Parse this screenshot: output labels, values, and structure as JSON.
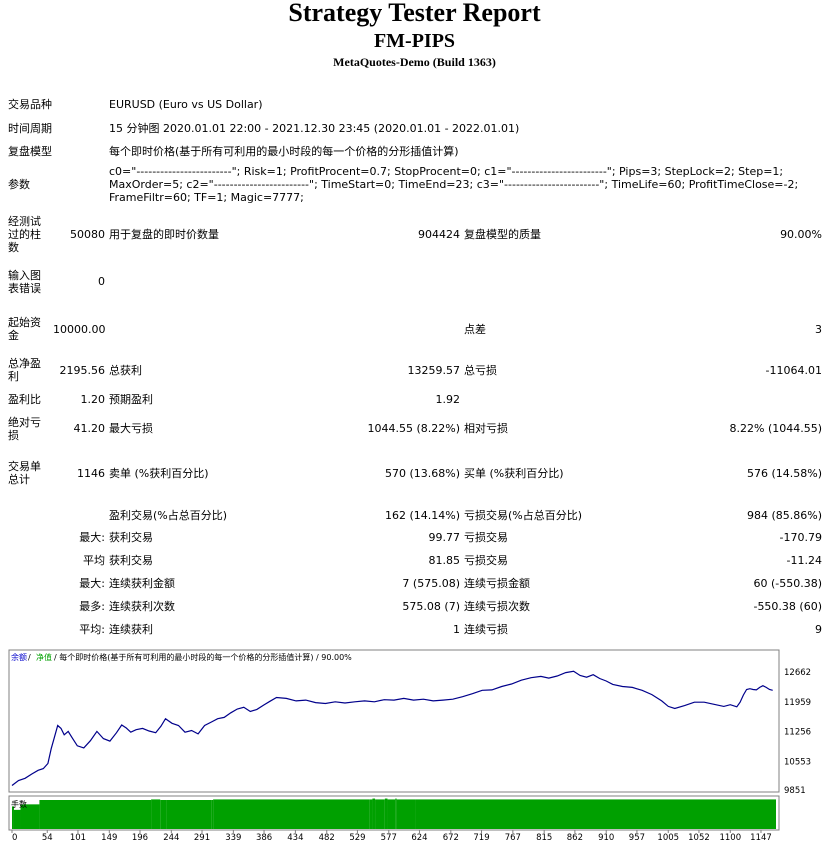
{
  "header": {
    "title": "Strategy Tester Report",
    "expert": "FM-PIPS",
    "server": "MetaQuotes-Demo (Build 1363)"
  },
  "info": {
    "symbol_label": "交易品种",
    "symbol_value": "EURUSD (Euro vs US Dollar)",
    "period_label": "时间周期",
    "period_value": "15 分钟图 2020.01.01 22:00 - 2021.12.30 23:45 (2020.01.01 - 2022.01.01)",
    "model_label": "复盘模型",
    "model_value": "每个即时价格(基于所有可利用的最小时段的每一个价格的分形插值计算)",
    "params_label": "参数",
    "params_value": "c0=\"------------------------\"; Risk=1; ProfitProcent=0.7; StopProcent=0; c1=\"------------------------\"; Pips=3; StepLock=2; Step=1; MaxOrder=5; c2=\"------------------------\"; TimeStart=0; TimeEnd=23; c3=\"------------------------\"; TimeLife=60; ProfitTimeClose=-2; FrameFiltr=60; TF=1; Magic=7777;"
  },
  "stats": {
    "bars_label": "经测试过的柱数",
    "bars": "50080",
    "ticks_label": "用于复盘的即时价数量",
    "ticks": "904424",
    "quality_label": "复盘模型的质量",
    "quality": "90.00%",
    "errors_label": "输入图表错误",
    "errors": "0",
    "deposit_label": "起始资金",
    "deposit": "10000.00",
    "spread_label": "点差",
    "spread": "3",
    "net_label": "总净盈利",
    "net": "2195.56",
    "gross_profit_label": "总获利",
    "gross_profit": "13259.57",
    "gross_loss_label": "总亏损",
    "gross_loss": "-11064.01",
    "pf_label": "盈利比",
    "pf": "1.20",
    "expected_label": "预期盈利",
    "expected": "1.92",
    "abs_dd_label": "绝对亏损",
    "abs_dd": "41.20",
    "max_dd_label": "最大亏损",
    "max_dd": "1044.55 (8.22%)",
    "rel_dd_label": "相对亏损",
    "rel_dd": "8.22% (1044.55)",
    "trades_label": "交易单总计",
    "trades": "1146",
    "short_label": "卖单 (%获利百分比)",
    "short": "570 (13.68%)",
    "long_label": "买单 (%获利百分比)",
    "long": "576 (14.58%)",
    "win_label": "盈利交易(%占总百分比)",
    "win": "162 (14.14%)",
    "loss_label": "亏损交易(%占总百分比)",
    "loss": "984 (85.86%)",
    "largest_label": "最大:",
    "largest_win_label": "获利交易",
    "largest_win": "99.77",
    "largest_loss_label": "亏损交易",
    "largest_loss": "-170.79",
    "average_label": "平均",
    "average_win_label": "获利交易",
    "average_win": "81.85",
    "average_loss_label": "亏损交易",
    "average_loss": "-11.24",
    "max_label": "最大:",
    "max_cw_label": "连续获利金额",
    "max_cw": "7 (575.08)",
    "max_cl_label": "连续亏损金额",
    "max_cl": "60 (-550.38)",
    "most_label": "最多:",
    "most_cw_label": "连续获利次数",
    "most_cw": "575.08 (7)",
    "most_cl_label": "连续亏损次数",
    "most_cl": "-550.38 (60)",
    "avg_label": "平均:",
    "avg_cw_label": "连续获利",
    "avg_cw": "1",
    "avg_cl_label": "连续亏损",
    "avg_cl": "9"
  },
  "chart_data": {
    "type": "line",
    "legend": {
      "balance": "余额",
      "equity": "净值",
      "text": " / 每个即时价格(基于所有可利用的最小时段的每一个价格的分形插值计算) / 90.00%"
    },
    "lots_label": "手数",
    "ylim": [
      9851,
      12900
    ],
    "y_ticks": [
      12662,
      11959,
      11256,
      10553,
      9851
    ],
    "xlim": [
      0,
      1170
    ],
    "x_ticks": [
      0,
      54,
      101,
      149,
      196,
      244,
      291,
      339,
      386,
      434,
      482,
      529,
      577,
      624,
      672,
      719,
      767,
      815,
      862,
      910,
      957,
      1005,
      1052,
      1100,
      1147
    ],
    "series": [
      {
        "color": "#00008b",
        "x": [
          0,
          10,
          20,
          30,
          40,
          48,
          55,
          60,
          65,
          70,
          75,
          80,
          86,
          92,
          100,
          110,
          120,
          130,
          140,
          150,
          160,
          168,
          175,
          182,
          190,
          200,
          210,
          220,
          228,
          235,
          245,
          255,
          265,
          275,
          285,
          295,
          305,
          315,
          325,
          335,
          345,
          355,
          365,
          375,
          385,
          395,
          405,
          420,
          435,
          450,
          465,
          480,
          495,
          510,
          525,
          540,
          555,
          570,
          585,
          600,
          615,
          630,
          645,
          660,
          675,
          690,
          705,
          720,
          735,
          750,
          765,
          780,
          795,
          810,
          822,
          835,
          848,
          860,
          870,
          880,
          890,
          900,
          910,
          920,
          935,
          950,
          965,
          980,
          995,
          1005,
          1015,
          1030,
          1045,
          1060,
          1075,
          1090,
          1100,
          1110,
          1115,
          1120,
          1125,
          1130,
          1135,
          1140,
          1145,
          1150,
          1155,
          1160,
          1165
        ],
        "values": [
          9980,
          10100,
          10150,
          10250,
          10340,
          10380,
          10500,
          10850,
          11120,
          11400,
          11330,
          11180,
          11260,
          11110,
          10920,
          10870,
          11040,
          11260,
          11090,
          11030,
          11230,
          11410,
          11340,
          11240,
          11300,
          11330,
          11270,
          11230,
          11380,
          11560,
          11450,
          11400,
          11240,
          11280,
          11200,
          11400,
          11480,
          11560,
          11590,
          11700,
          11790,
          11830,
          11730,
          11780,
          11880,
          11970,
          12060,
          12040,
          11980,
          12000,
          11940,
          11920,
          11960,
          11930,
          11960,
          11980,
          11960,
          12010,
          12000,
          12040,
          12000,
          12020,
          11980,
          12000,
          12020,
          12080,
          12150,
          12230,
          12240,
          12320,
          12380,
          12470,
          12530,
          12560,
          12520,
          12570,
          12650,
          12680,
          12580,
          12540,
          12600,
          12510,
          12450,
          12370,
          12320,
          12300,
          12230,
          12130,
          11980,
          11850,
          11800,
          11870,
          11950,
          11950,
          11900,
          11850,
          11890,
          11840,
          11950,
          12120,
          12250,
          12270,
          12250,
          12240,
          12300,
          12340,
          12300,
          12250,
          12230
        ]
      }
    ],
    "lots": {
      "color": "#00a000",
      "x": [
        0,
        3,
        13,
        42,
        213,
        227,
        236,
        306,
        308,
        548,
        552,
        556,
        571,
        575,
        587,
        589,
        618,
        1170
      ],
      "level": [
        0.78,
        0.66,
        0.85,
        1.0,
        1.02,
        1.0,
        1.0,
        1.0,
        1.02,
        1.02,
        1.05,
        1.02,
        1.05,
        1.02,
        1.05,
        1.02,
        1.02,
        1.02
      ]
    }
  }
}
